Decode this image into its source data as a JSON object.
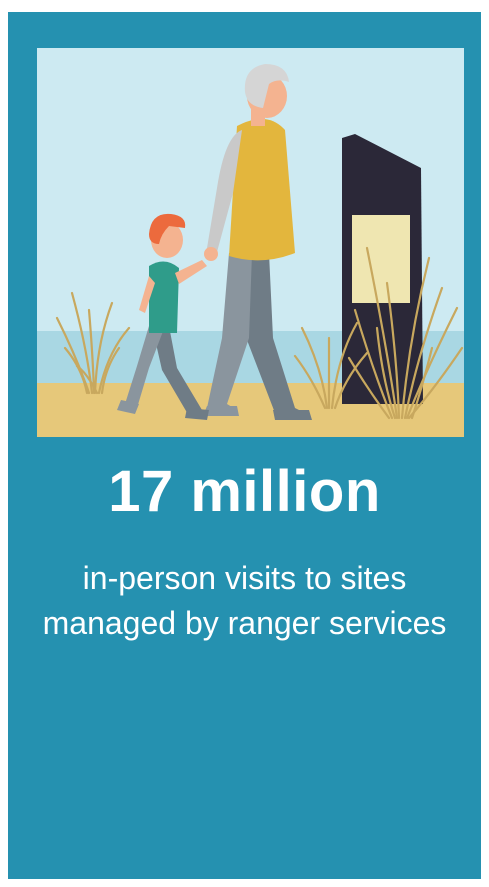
{
  "stat": {
    "value": "17 million",
    "description": "in-person visits to sites managed by ranger services"
  },
  "illustration": {
    "subject": "grandparent-and-child-walking-by-signpost",
    "colors": {
      "background": "#2591b0",
      "sky": "#cdeaf2",
      "sea": "#a9d7e3",
      "sand": "#e6c87a",
      "sign": "#2b2838",
      "sign_panel": "#efe6b1",
      "grass": "#c8a85e",
      "vest": "#e3b63d",
      "trousers": "#8a959e",
      "child_shirt": "#2f9c8a",
      "child_hair": "#ec6a3d",
      "skin": "#f4b390",
      "hair_grey": "#d5d5d5"
    }
  }
}
